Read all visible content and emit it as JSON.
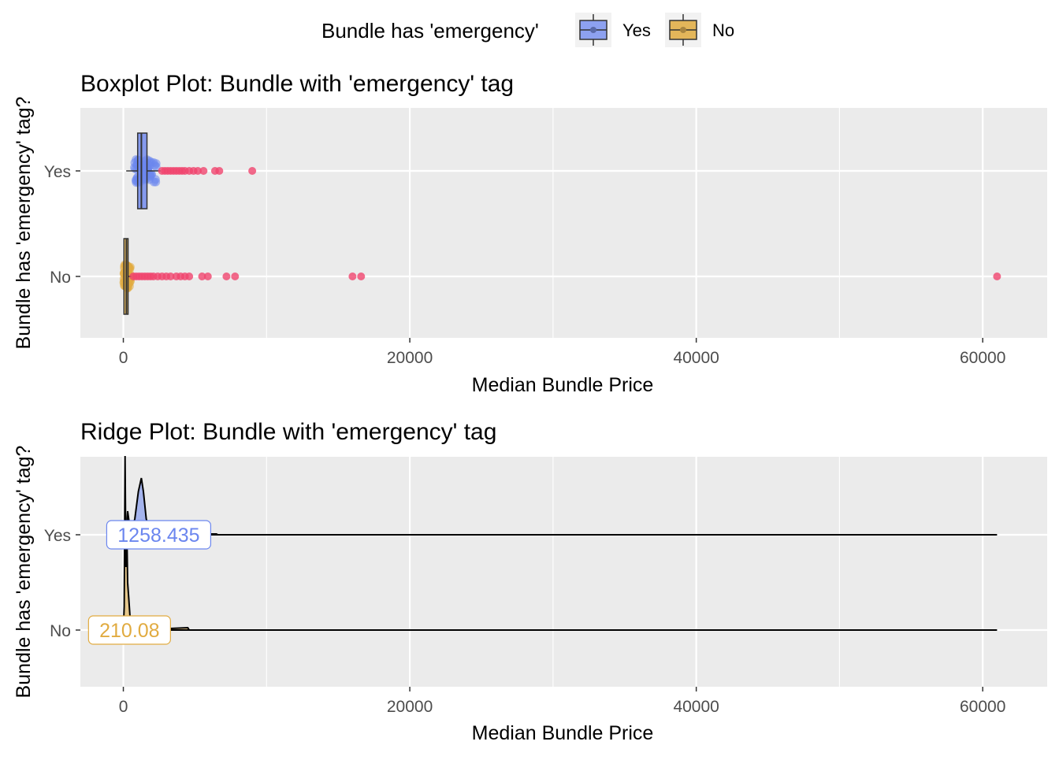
{
  "legend": {
    "title": "Bundle has 'emergency'",
    "items": [
      {
        "label": "Yes",
        "color": "#6b86ef"
      },
      {
        "label": "No",
        "color": "#e1ab40"
      }
    ]
  },
  "colors": {
    "panel_bg": "#ebebeb",
    "grid": "#ffffff",
    "yes_fill": "#6b86ef",
    "no_fill": "#e1ab40",
    "outlier": "#f0456e",
    "box_line": "#333333"
  },
  "chart_data": [
    {
      "type": "boxplot",
      "title": "Boxplot Plot: Bundle with 'emergency' tag",
      "xlabel": "Median Bundle Price",
      "ylabel": "Bundle has 'emergency' tag?",
      "xlim": [
        -3000,
        64500
      ],
      "x_ticks": [
        0,
        20000,
        40000,
        60000
      ],
      "x_tick_labels": [
        "0",
        "20000",
        "40000",
        "60000"
      ],
      "categories": [
        "Yes",
        "No"
      ],
      "series": [
        {
          "name": "Yes",
          "box": {
            "min": 200,
            "q1": 1000,
            "median": 1258.435,
            "q3": 1650,
            "max": 2600
          },
          "outliers": [
            2700,
            2900,
            3100,
            3300,
            3500,
            3700,
            3900,
            4100,
            4300,
            4600,
            4900,
            5200,
            5600,
            6400,
            6700,
            9000
          ]
        },
        {
          "name": "No",
          "box": {
            "min": 0,
            "q1": 40,
            "median": 210.08,
            "q3": 330,
            "max": 550
          },
          "outliers": [
            700,
            900,
            1100,
            1300,
            1500,
            1700,
            1900,
            2100,
            2400,
            2700,
            3000,
            3300,
            3700,
            4000,
            4300,
            4600,
            5500,
            5900,
            7200,
            7800,
            16000,
            16600,
            61000
          ]
        }
      ]
    },
    {
      "type": "ridge",
      "title": "Ridge Plot: Bundle with 'emergency' tag",
      "xlabel": "Median Bundle Price",
      "ylabel": "Bundle has 'emergency' tag?",
      "xlim": [
        -3000,
        64500
      ],
      "x_ticks": [
        0,
        20000,
        40000,
        60000
      ],
      "x_tick_labels": [
        "0",
        "20000",
        "40000",
        "60000"
      ],
      "categories": [
        "Yes",
        "No"
      ],
      "annotations": [
        {
          "category": "Yes",
          "label": "1258.435",
          "x": 1258.435
        },
        {
          "category": "No",
          "label": "210.08",
          "x": 210.08
        }
      ],
      "x_range": [
        0,
        61000
      ]
    }
  ]
}
